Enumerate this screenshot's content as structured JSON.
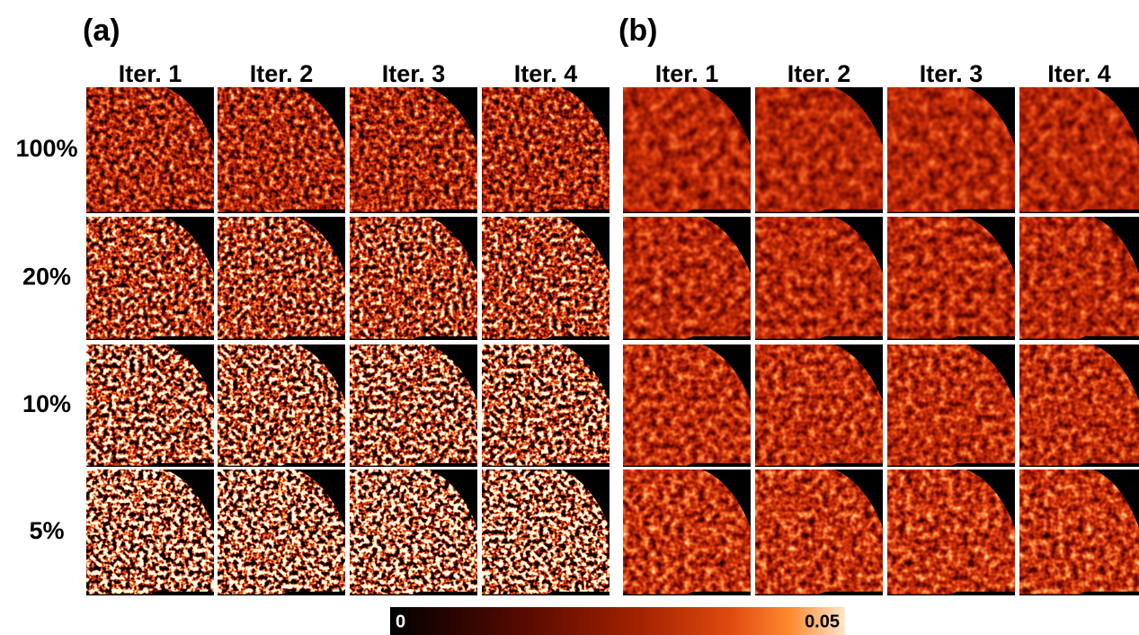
{
  "panels": [
    {
      "label": "(a)",
      "columns": [
        "Iter. 1",
        "Iter. 2",
        "Iter. 3",
        "Iter. 4"
      ]
    },
    {
      "label": "(b)",
      "columns": [
        "Iter. 1",
        "Iter. 2",
        "Iter. 3",
        "Iter. 4"
      ]
    }
  ],
  "row_labels": [
    "100%",
    "20%",
    "10%",
    "5%"
  ],
  "colorbar": {
    "min_label": "0",
    "max_label": "0.05"
  }
}
